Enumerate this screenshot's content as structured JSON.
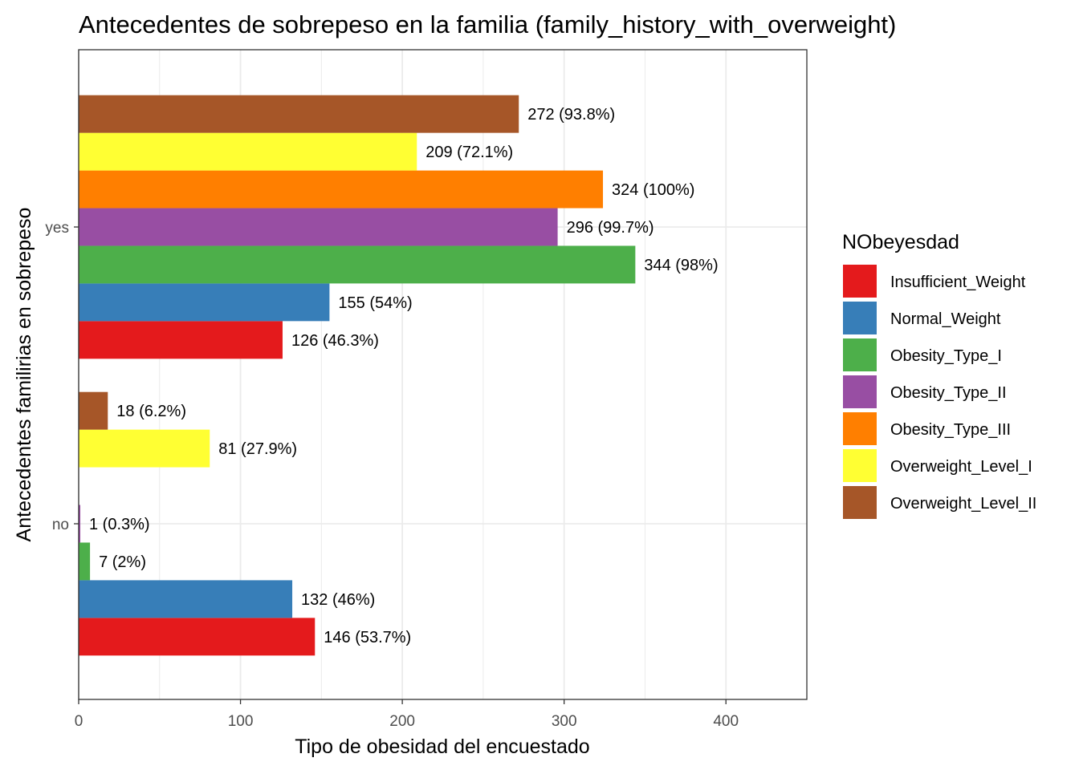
{
  "chart_data": {
    "type": "bar",
    "orientation": "horizontal",
    "title": "Antecedentes de sobrepeso en la familia (family_history_with_overweight)",
    "xlabel": "Tipo de obesidad del encuestado",
    "ylabel": "Antecedentes familirias en sobrepeso",
    "xlim": [
      0,
      450
    ],
    "x_ticks": [
      0,
      100,
      200,
      300,
      400
    ],
    "grid": true,
    "legend_position": "right",
    "categories": [
      "no",
      "yes"
    ],
    "legend": {
      "title": "NObeyesdad",
      "entries": [
        {
          "name": "Insufficient_Weight",
          "color": "#E41A1C"
        },
        {
          "name": "Normal_Weight",
          "color": "#377EB8"
        },
        {
          "name": "Obesity_Type_I",
          "color": "#4DAF4A"
        },
        {
          "name": "Obesity_Type_II",
          "color": "#984EA3"
        },
        {
          "name": "Obesity_Type_III",
          "color": "#FF7F00"
        },
        {
          "name": "Overweight_Level_I",
          "color": "#FFFF33"
        },
        {
          "name": "Overweight_Level_II",
          "color": "#A65628"
        }
      ]
    },
    "series": [
      {
        "name": "Insufficient_Weight",
        "values": [
          146,
          126
        ],
        "labels": [
          "146 (53.7%)",
          "126 (46.3%)"
        ]
      },
      {
        "name": "Normal_Weight",
        "values": [
          132,
          155
        ],
        "labels": [
          "132 (46%)",
          "155 (54%)"
        ]
      },
      {
        "name": "Obesity_Type_I",
        "values": [
          7,
          344
        ],
        "labels": [
          "7 (2%)",
          "344 (98%)"
        ]
      },
      {
        "name": "Obesity_Type_II",
        "values": [
          1,
          296
        ],
        "labels": [
          "1 (0.3%)",
          "296 (99.7%)"
        ]
      },
      {
        "name": "Obesity_Type_III",
        "values": [
          0,
          324
        ],
        "labels": [
          "",
          "324 (100%)"
        ]
      },
      {
        "name": "Overweight_Level_I",
        "values": [
          81,
          209
        ],
        "labels": [
          "81 (27.9%)",
          "209 (72.1%)"
        ]
      },
      {
        "name": "Overweight_Level_II",
        "values": [
          18,
          272
        ],
        "labels": [
          "18 (6.2%)",
          "272 (93.8%)"
        ]
      }
    ]
  }
}
